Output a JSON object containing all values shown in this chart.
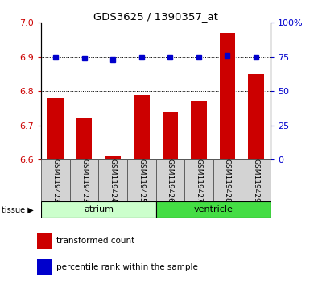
{
  "title": "GDS3625 / 1390357_at",
  "samples": [
    "GSM119422",
    "GSM119423",
    "GSM119424",
    "GSM119425",
    "GSM119426",
    "GSM119427",
    "GSM119428",
    "GSM119429"
  ],
  "transformed_count": [
    6.78,
    6.72,
    6.61,
    6.79,
    6.74,
    6.77,
    6.97,
    6.85
  ],
  "percentile_rank": [
    75,
    74,
    73,
    75,
    75,
    75,
    76,
    75
  ],
  "ylim_left": [
    6.6,
    7.0
  ],
  "ylim_right": [
    0,
    100
  ],
  "yticks_left": [
    6.6,
    6.7,
    6.8,
    6.9,
    7.0
  ],
  "yticks_right": [
    0,
    25,
    50,
    75,
    100
  ],
  "bar_color": "#cc0000",
  "dot_color": "#0000cc",
  "bar_width": 0.55,
  "n_atrium": 4,
  "n_ventricle": 4,
  "atrium_color": "#ccffcc",
  "ventricle_color": "#44dd44",
  "tissue_label": "tissue",
  "atrium_label": "atrium",
  "ventricle_label": "ventricle",
  "legend_bar_label": "transformed count",
  "legend_dot_label": "percentile rank within the sample",
  "background_color": "#ffffff",
  "tick_color_left": "#cc0000",
  "tick_color_right": "#0000cc"
}
